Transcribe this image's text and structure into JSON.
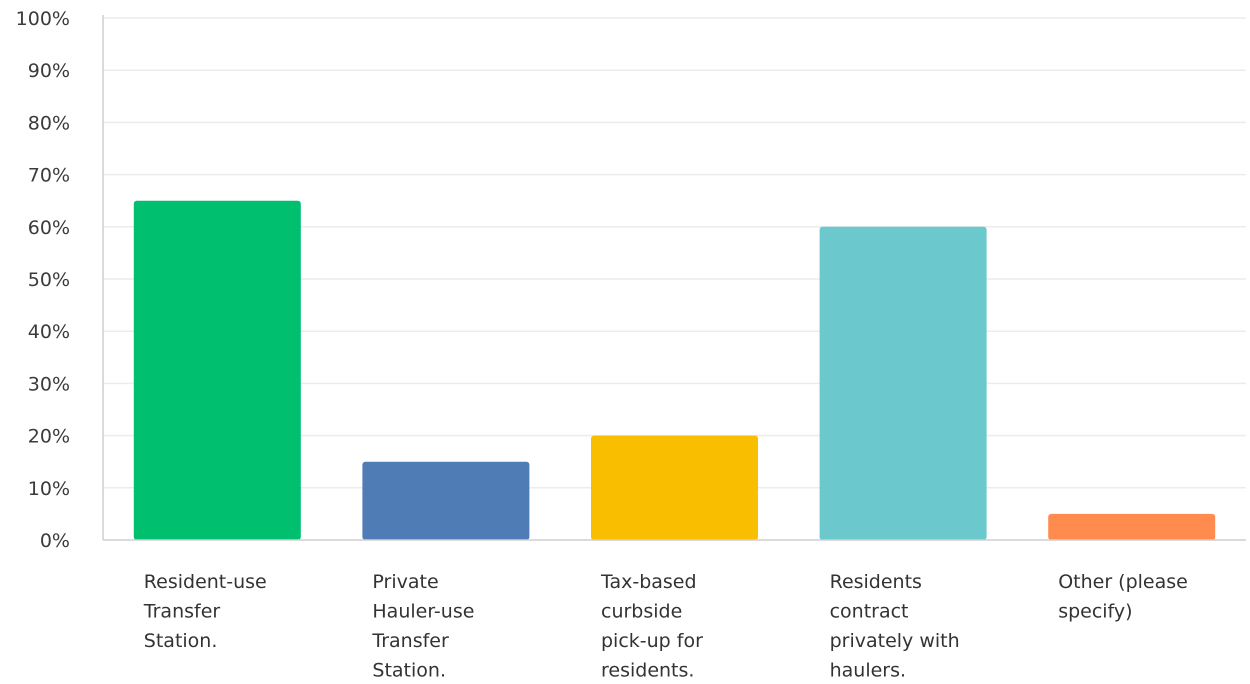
{
  "chart_data": {
    "type": "bar",
    "categories": [
      [
        "Resident-use",
        "Transfer",
        "Station."
      ],
      [
        "Private",
        "Hauler-use",
        "Transfer",
        "Station."
      ],
      [
        "Tax-based",
        "curbside",
        "pick-up for",
        "residents."
      ],
      [
        "Residents",
        "contract",
        "privately with",
        "haulers."
      ],
      [
        "Other (please",
        "specify)"
      ]
    ],
    "values": [
      65,
      15,
      20,
      60,
      5
    ],
    "colors": [
      "#00bf6f",
      "#507cb6",
      "#f9be00",
      "#6bc8cd",
      "#ff8b4f"
    ],
    "y_ticks": [
      "0%",
      "10%",
      "20%",
      "30%",
      "40%",
      "50%",
      "60%",
      "70%",
      "80%",
      "90%",
      "100%"
    ],
    "ylim": [
      0,
      100
    ],
    "grid": true,
    "title": "",
    "xlabel": "",
    "ylabel": ""
  }
}
